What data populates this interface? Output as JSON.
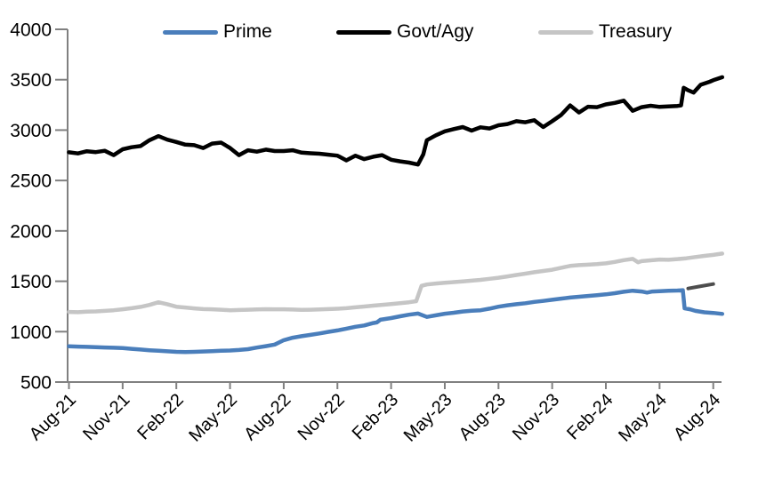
{
  "chart_data": {
    "type": "line",
    "title": "",
    "xlabel": "",
    "ylabel": "",
    "ylim": [
      500,
      4000
    ],
    "y_ticks": [
      500,
      1000,
      1500,
      2000,
      2500,
      3000,
      3500,
      4000
    ],
    "x_tick_labels": [
      "Aug-21",
      "Nov-21",
      "Feb-22",
      "May-22",
      "Aug-22",
      "Nov-22",
      "Feb-23",
      "May-23",
      "Aug-23",
      "Nov-23",
      "Feb-24",
      "May-24",
      "Aug-24"
    ],
    "x_tick_interval_months": 3,
    "x_range_months": [
      0,
      36.5
    ],
    "grid": false,
    "legend_position": "top",
    "axis_color": "#808080",
    "label_color": "#000000",
    "series": [
      {
        "name": "Prime",
        "color": "#4a7ebb",
        "stroke_width": 4.5,
        "points": [
          [
            0,
            855
          ],
          [
            0.5,
            852
          ],
          [
            1,
            849
          ],
          [
            1.5,
            846
          ],
          [
            2,
            843
          ],
          [
            2.5,
            840
          ],
          [
            3,
            837
          ],
          [
            3.5,
            830
          ],
          [
            4,
            823
          ],
          [
            4.5,
            816
          ],
          [
            5,
            810
          ],
          [
            5.5,
            805
          ],
          [
            6,
            800
          ],
          [
            6.5,
            797
          ],
          [
            7,
            800
          ],
          [
            7.5,
            803
          ],
          [
            8,
            807
          ],
          [
            8.5,
            810
          ],
          [
            9,
            813
          ],
          [
            9.5,
            818
          ],
          [
            10,
            826
          ],
          [
            10.5,
            842
          ],
          [
            11,
            856
          ],
          [
            11.5,
            872
          ],
          [
            12,
            915
          ],
          [
            12.5,
            940
          ],
          [
            13,
            955
          ],
          [
            13.5,
            968
          ],
          [
            14,
            982
          ],
          [
            14.5,
            998
          ],
          [
            15,
            1012
          ],
          [
            15.5,
            1030
          ],
          [
            16,
            1048
          ],
          [
            16.5,
            1062
          ],
          [
            17,
            1085
          ],
          [
            17.2,
            1092
          ],
          [
            17.4,
            1118
          ],
          [
            18,
            1135
          ],
          [
            18.5,
            1152
          ],
          [
            19,
            1168
          ],
          [
            19.5,
            1180
          ],
          [
            20,
            1146
          ],
          [
            20.5,
            1162
          ],
          [
            21,
            1178
          ],
          [
            21.5,
            1188
          ],
          [
            22,
            1200
          ],
          [
            22.5,
            1207
          ],
          [
            23,
            1212
          ],
          [
            23.5,
            1228
          ],
          [
            24,
            1248
          ],
          [
            24.5,
            1262
          ],
          [
            25,
            1272
          ],
          [
            25.5,
            1282
          ],
          [
            26,
            1295
          ],
          [
            26.5,
            1305
          ],
          [
            27,
            1316
          ],
          [
            27.5,
            1328
          ],
          [
            28,
            1338
          ],
          [
            28.5,
            1346
          ],
          [
            29,
            1354
          ],
          [
            29.5,
            1362
          ],
          [
            30,
            1370
          ],
          [
            30.5,
            1382
          ],
          [
            31,
            1396
          ],
          [
            31.5,
            1406
          ],
          [
            32,
            1398
          ],
          [
            32.3,
            1388
          ],
          [
            32.6,
            1398
          ],
          [
            33,
            1402
          ],
          [
            33.5,
            1406
          ],
          [
            34,
            1408
          ],
          [
            34.3,
            1412
          ],
          [
            34.4,
            1232
          ],
          [
            34.7,
            1222
          ],
          [
            35,
            1206
          ],
          [
            35.5,
            1192
          ],
          [
            36,
            1186
          ],
          [
            36.5,
            1176
          ]
        ]
      },
      {
        "name": "Govt/Agy",
        "color": "#000000",
        "stroke_width": 4.5,
        "points": [
          [
            0,
            2780
          ],
          [
            0.5,
            2768
          ],
          [
            1,
            2790
          ],
          [
            1.5,
            2782
          ],
          [
            2,
            2795
          ],
          [
            2.5,
            2752
          ],
          [
            3,
            2810
          ],
          [
            3.5,
            2830
          ],
          [
            4,
            2842
          ],
          [
            4.5,
            2900
          ],
          [
            5,
            2940
          ],
          [
            5.5,
            2905
          ],
          [
            6,
            2882
          ],
          [
            6.5,
            2856
          ],
          [
            7,
            2850
          ],
          [
            7.5,
            2822
          ],
          [
            8,
            2866
          ],
          [
            8.5,
            2876
          ],
          [
            9,
            2822
          ],
          [
            9.5,
            2752
          ],
          [
            10,
            2800
          ],
          [
            10.5,
            2786
          ],
          [
            11,
            2806
          ],
          [
            11.5,
            2792
          ],
          [
            12,
            2792
          ],
          [
            12.5,
            2800
          ],
          [
            13,
            2776
          ],
          [
            13.5,
            2770
          ],
          [
            14,
            2766
          ],
          [
            14.5,
            2756
          ],
          [
            15,
            2746
          ],
          [
            15.5,
            2700
          ],
          [
            16,
            2746
          ],
          [
            16.5,
            2712
          ],
          [
            17,
            2736
          ],
          [
            17.5,
            2752
          ],
          [
            18,
            2706
          ],
          [
            18.5,
            2690
          ],
          [
            19,
            2678
          ],
          [
            19.5,
            2658
          ],
          [
            19.8,
            2760
          ],
          [
            20,
            2900
          ],
          [
            20.5,
            2948
          ],
          [
            21,
            2988
          ],
          [
            21.5,
            3010
          ],
          [
            22,
            3030
          ],
          [
            22.5,
            2995
          ],
          [
            23,
            3028
          ],
          [
            23.5,
            3016
          ],
          [
            24,
            3048
          ],
          [
            24.5,
            3060
          ],
          [
            25,
            3088
          ],
          [
            25.5,
            3078
          ],
          [
            26,
            3098
          ],
          [
            26.5,
            3030
          ],
          [
            27,
            3088
          ],
          [
            27.5,
            3150
          ],
          [
            28,
            3245
          ],
          [
            28.5,
            3175
          ],
          [
            29,
            3232
          ],
          [
            29.5,
            3228
          ],
          [
            30,
            3255
          ],
          [
            30.5,
            3270
          ],
          [
            31,
            3292
          ],
          [
            31.5,
            3192
          ],
          [
            32,
            3228
          ],
          [
            32.5,
            3242
          ],
          [
            33,
            3230
          ],
          [
            33.5,
            3235
          ],
          [
            34,
            3240
          ],
          [
            34.2,
            3245
          ],
          [
            34.35,
            3420
          ],
          [
            34.6,
            3395
          ],
          [
            34.9,
            3372
          ],
          [
            35.3,
            3450
          ],
          [
            35.8,
            3480
          ],
          [
            36,
            3495
          ],
          [
            36.5,
            3525
          ]
        ]
      },
      {
        "name": "Treasury",
        "color": "#c5c5c5",
        "stroke_width": 4.5,
        "points": [
          [
            0,
            1196
          ],
          [
            0.5,
            1193
          ],
          [
            1,
            1198
          ],
          [
            1.5,
            1201
          ],
          [
            2,
            1206
          ],
          [
            2.5,
            1212
          ],
          [
            3,
            1222
          ],
          [
            3.5,
            1233
          ],
          [
            4,
            1246
          ],
          [
            4.5,
            1265
          ],
          [
            5,
            1292
          ],
          [
            5.5,
            1272
          ],
          [
            6,
            1248
          ],
          [
            6.5,
            1240
          ],
          [
            7,
            1231
          ],
          [
            7.5,
            1224
          ],
          [
            8,
            1222
          ],
          [
            8.5,
            1218
          ],
          [
            9,
            1212
          ],
          [
            9.5,
            1215
          ],
          [
            10,
            1218
          ],
          [
            10.5,
            1221
          ],
          [
            11,
            1223
          ],
          [
            11.5,
            1222
          ],
          [
            12,
            1222
          ],
          [
            12.5,
            1219
          ],
          [
            13,
            1216
          ],
          [
            13.5,
            1218
          ],
          [
            14,
            1221
          ],
          [
            14.5,
            1224
          ],
          [
            15,
            1227
          ],
          [
            15.5,
            1233
          ],
          [
            16,
            1241
          ],
          [
            16.5,
            1249
          ],
          [
            17,
            1258
          ],
          [
            17.5,
            1266
          ],
          [
            18,
            1274
          ],
          [
            18.5,
            1283
          ],
          [
            19,
            1292
          ],
          [
            19.4,
            1302
          ],
          [
            19.7,
            1455
          ],
          [
            20,
            1468
          ],
          [
            20.5,
            1478
          ],
          [
            21,
            1486
          ],
          [
            21.5,
            1492
          ],
          [
            22,
            1498
          ],
          [
            22.5,
            1506
          ],
          [
            23,
            1514
          ],
          [
            23.5,
            1524
          ],
          [
            24,
            1535
          ],
          [
            24.5,
            1548
          ],
          [
            25,
            1562
          ],
          [
            25.5,
            1576
          ],
          [
            26,
            1590
          ],
          [
            26.5,
            1602
          ],
          [
            27,
            1614
          ],
          [
            27.5,
            1634
          ],
          [
            28,
            1652
          ],
          [
            28.5,
            1660
          ],
          [
            29,
            1665
          ],
          [
            29.5,
            1670
          ],
          [
            30,
            1678
          ],
          [
            30.5,
            1692
          ],
          [
            31,
            1710
          ],
          [
            31.5,
            1722
          ],
          [
            31.8,
            1688
          ],
          [
            32,
            1700
          ],
          [
            32.5,
            1708
          ],
          [
            33,
            1716
          ],
          [
            33.5,
            1713
          ],
          [
            34,
            1720
          ],
          [
            34.5,
            1728
          ],
          [
            35,
            1740
          ],
          [
            35.5,
            1752
          ],
          [
            36,
            1762
          ],
          [
            36.5,
            1775
          ]
        ]
      }
    ],
    "extra_marks": [
      {
        "name": "unlabeled-dark-segment",
        "description": "short unlabeled dark segment at far right between Treasury and dropped Prime line",
        "color": "#4d4d4d",
        "stroke_width": 4,
        "points": [
          [
            34.6,
            1428
          ],
          [
            35.2,
            1448
          ],
          [
            36,
            1472
          ]
        ]
      }
    ]
  },
  "legend": {
    "items": [
      {
        "label": "Prime"
      },
      {
        "label": "Govt/Agy"
      },
      {
        "label": "Treasury"
      }
    ]
  }
}
